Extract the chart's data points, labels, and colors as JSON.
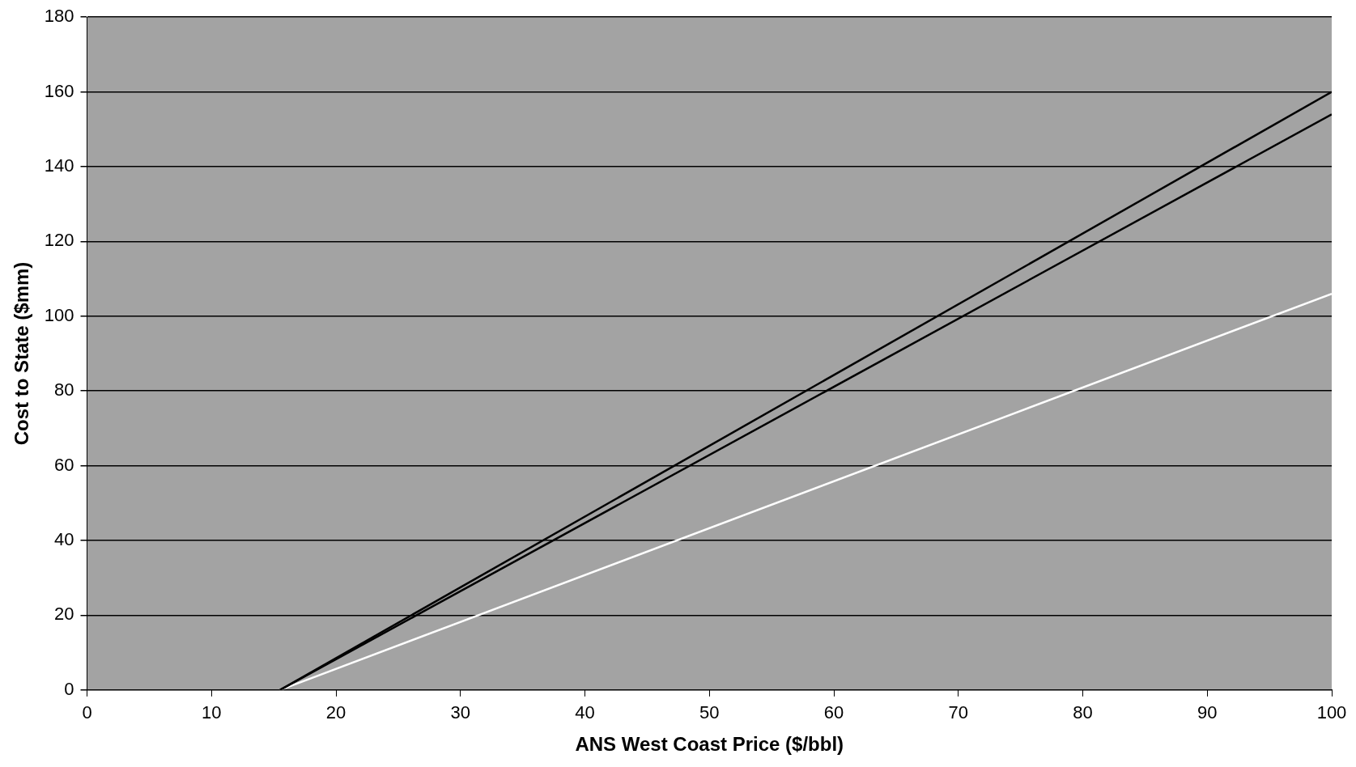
{
  "chart_data": {
    "type": "line",
    "xlabel": "ANS West Coast Price ($/bbl)",
    "ylabel": "Cost to State ($mm)",
    "xlim": [
      0,
      100
    ],
    "xticks": [
      0,
      10,
      20,
      30,
      40,
      50,
      60,
      70,
      80,
      90,
      100
    ],
    "ylim": [
      0,
      180
    ],
    "yticks": [
      0,
      20,
      40,
      60,
      80,
      100,
      120,
      140,
      160,
      180
    ],
    "grid": "y",
    "legend": false,
    "marker": "none",
    "line_style": "solid",
    "x": [
      15.5,
      100
    ],
    "series": [
      {
        "color": "#000000",
        "values": [
          0,
          160
        ]
      },
      {
        "color": "#000000",
        "values": [
          0,
          154
        ]
      },
      {
        "color": "#ffffff",
        "values": [
          0,
          106
        ]
      }
    ]
  }
}
